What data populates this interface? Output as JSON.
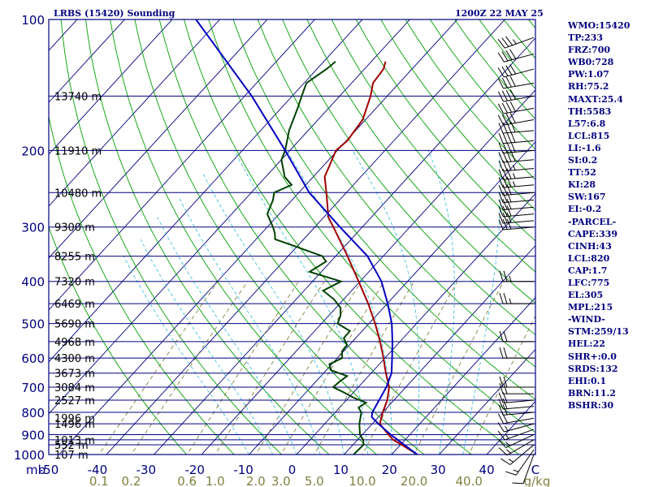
{
  "header": {
    "station": "LRBS (15420) Sounding",
    "time": "1200Z 22 MAY 25"
  },
  "indices": [
    "WMO:15420",
    "TP:233",
    "FRZ:700",
    "WB0:728",
    "PW:1.07",
    "RH:75.2",
    "MAXT:25.4",
    "TH:5583",
    "L57:6.8",
    "LCL:815",
    "LI:-1.6",
    "SI:0.2",
    "TT:52",
    "KI:28",
    "SW:167",
    "EI:-0.2",
    "-PARCEL-",
    "CAPE:339",
    "CINH:43",
    "LCL:820",
    "CAP:1.7",
    "LFC:775",
    "EL:305",
    "MPL:215",
    "-WIND-",
    "STM:259/13",
    "HEL:22",
    "SHR+:0.0",
    "SRDS:132",
    "EHI:0.1",
    "BRN:11.2",
    "BSHR:30"
  ],
  "colors": {
    "frame": "#000080",
    "isobar": "#000080",
    "isotherm": "#000080",
    "dry_adiabat": "#00a000",
    "moist_adiabat": "#40c0e0",
    "mixing_ratio": "#808040",
    "temperature": "#a00000",
    "dewpoint": "#004000",
    "parcel": "#0000c0",
    "wind_barb": "#000000",
    "axis_text": "#000080",
    "mixing_text": "#808040",
    "background": "#ffffff"
  },
  "chart_data": {
    "type": "skew-t log-p sounding",
    "title": "LRBS (15420) Sounding",
    "xlabel": "",
    "ylabel": "mb",
    "ylim": [
      1000,
      100
    ],
    "xlim": [
      -50,
      40
    ],
    "pressure_ticks": [
      100,
      200,
      300,
      400,
      500,
      600,
      700,
      800,
      900,
      1000
    ],
    "pressure_tick_labels": [
      "100",
      "200",
      "300",
      "400",
      "500",
      "600",
      "700",
      "800",
      "900",
      "1000"
    ],
    "x_unit_label": "mb",
    "temperature_ticks": [
      "-50",
      "-40",
      "-30",
      "-20",
      "-10",
      "0",
      "10",
      "20",
      "30",
      "40",
      "C"
    ],
    "mixing_ratio_ticks": [
      {
        "label": "0.1",
        "value": 0.1
      },
      {
        "label": "0.2",
        "value": 0.2
      },
      {
        "label": "0.6",
        "value": 0.6
      },
      {
        "label": "1.0",
        "value": 1.0
      },
      {
        "label": "2.0",
        "value": 2.0
      },
      {
        "label": "3.0",
        "value": 3.0
      },
      {
        "label": "5.0",
        "value": 5.0
      },
      {
        "label": "10.0",
        "value": 10.0
      },
      {
        "label": "20.0",
        "value": 20.0
      },
      {
        "label": "40.0",
        "value": 40.0
      }
    ],
    "mixing_ratio_unit": "g/kg",
    "height_labels": [
      {
        "p": 1000,
        "text": "107 m"
      },
      {
        "p": 950,
        "text": "552 m"
      },
      {
        "p": 925,
        "text": "1013 m"
      },
      {
        "p": 850,
        "text": "1496 m"
      },
      {
        "p": 825,
        "text": "1996 m"
      },
      {
        "p": 750,
        "text": "2527 m"
      },
      {
        "p": 700,
        "text": "3084 m"
      },
      {
        "p": 650,
        "text": "3673 m"
      },
      {
        "p": 600,
        "text": "4300 m"
      },
      {
        "p": 550,
        "text": "4968 m"
      },
      {
        "p": 500,
        "text": "5690 m"
      },
      {
        "p": 450,
        "text": "6469 m"
      },
      {
        "p": 400,
        "text": "7320 m"
      },
      {
        "p": 350,
        "text": "8255 m"
      },
      {
        "p": 300,
        "text": "9300 m"
      },
      {
        "p": 250,
        "text": "10480 m"
      },
      {
        "p": 200,
        "text": "11910 m"
      },
      {
        "p": 150,
        "text": "13740 m"
      }
    ],
    "series": [
      {
        "name": "temperature",
        "points": [
          {
            "p": 1000,
            "t": 25.4
          },
          {
            "p": 950,
            "t": 20.3
          },
          {
            "p": 925,
            "t": 17.5
          },
          {
            "p": 900,
            "t": 15.5
          },
          {
            "p": 850,
            "t": 11.6
          },
          {
            "p": 800,
            "t": 10.0
          },
          {
            "p": 750,
            "t": 8.6
          },
          {
            "p": 700,
            "t": 6.5
          },
          {
            "p": 650,
            "t": 3.1
          },
          {
            "p": 600,
            "t": -0.3
          },
          {
            "p": 550,
            "t": -4.2
          },
          {
            "p": 500,
            "t": -8.7
          },
          {
            "p": 450,
            "t": -14.0
          },
          {
            "p": 400,
            "t": -20.3
          },
          {
            "p": 350,
            "t": -27.5
          },
          {
            "p": 300,
            "t": -36.1
          },
          {
            "p": 285,
            "t": -39.0
          },
          {
            "p": 250,
            "t": -44.2
          },
          {
            "p": 230,
            "t": -47.6
          },
          {
            "p": 200,
            "t": -50.3
          },
          {
            "p": 190,
            "t": -49.8
          },
          {
            "p": 170,
            "t": -50.6
          },
          {
            "p": 150,
            "t": -53.5
          },
          {
            "p": 140,
            "t": -55.5
          },
          {
            "p": 130,
            "t": -56.0
          },
          {
            "p": 125,
            "t": -57.0
          }
        ]
      },
      {
        "name": "dewpoint",
        "points": [
          {
            "p": 1000,
            "t": 12.0
          },
          {
            "p": 950,
            "t": 12.2
          },
          {
            "p": 925,
            "t": 11.2
          },
          {
            "p": 900,
            "t": 9.5
          },
          {
            "p": 850,
            "t": 7.3
          },
          {
            "p": 800,
            "t": 5.5
          },
          {
            "p": 780,
            "t": 4.0
          },
          {
            "p": 760,
            "t": 4.6
          },
          {
            "p": 740,
            "t": 1.0
          },
          {
            "p": 720,
            "t": -2.0
          },
          {
            "p": 700,
            "t": -5.3
          },
          {
            "p": 680,
            "t": -5.0
          },
          {
            "p": 660,
            "t": -4.5
          },
          {
            "p": 640,
            "t": -9.0
          },
          {
            "p": 620,
            "t": -10.5
          },
          {
            "p": 600,
            "t": -9.0
          },
          {
            "p": 580,
            "t": -10.3
          },
          {
            "p": 560,
            "t": -10.5
          },
          {
            "p": 540,
            "t": -12.5
          },
          {
            "p": 520,
            "t": -12.6
          },
          {
            "p": 500,
            "t": -16.6
          },
          {
            "p": 480,
            "t": -17.5
          },
          {
            "p": 460,
            "t": -19.0
          },
          {
            "p": 440,
            "t": -22.0
          },
          {
            "p": 420,
            "t": -26.0
          },
          {
            "p": 400,
            "t": -24.0
          },
          {
            "p": 380,
            "t": -32.5
          },
          {
            "p": 360,
            "t": -31.0
          },
          {
            "p": 350,
            "t": -32.8
          },
          {
            "p": 340,
            "t": -37.0
          },
          {
            "p": 330,
            "t": -41.4
          },
          {
            "p": 320,
            "t": -46.0
          },
          {
            "p": 310,
            "t": -47.2
          },
          {
            "p": 300,
            "t": -48.8
          },
          {
            "p": 280,
            "t": -52.5
          },
          {
            "p": 260,
            "t": -54.0
          },
          {
            "p": 250,
            "t": -55.2
          },
          {
            "p": 240,
            "t": -53.0
          },
          {
            "p": 230,
            "t": -56.0
          },
          {
            "p": 210,
            "t": -60.0
          },
          {
            "p": 200,
            "t": -61.0
          },
          {
            "p": 180,
            "t": -64.0
          },
          {
            "p": 160,
            "t": -66.5
          },
          {
            "p": 150,
            "t": -68.0
          },
          {
            "p": 140,
            "t": -69.5
          },
          {
            "p": 130,
            "t": -68.0
          },
          {
            "p": 125,
            "t": -67.5
          }
        ]
      },
      {
        "name": "parcel",
        "points": [
          {
            "p": 1000,
            "t": 25.4
          },
          {
            "p": 950,
            "t": 20.8
          },
          {
            "p": 900,
            "t": 16.0
          },
          {
            "p": 850,
            "t": 11.3
          },
          {
            "p": 820,
            "t": 8.6
          },
          {
            "p": 800,
            "t": 7.8
          },
          {
            "p": 750,
            "t": 6.9
          },
          {
            "p": 700,
            "t": 5.9
          },
          {
            "p": 650,
            "t": 4.3
          },
          {
            "p": 600,
            "t": 1.5
          },
          {
            "p": 550,
            "t": -1.6
          },
          {
            "p": 500,
            "t": -5.2
          },
          {
            "p": 450,
            "t": -9.9
          },
          {
            "p": 400,
            "t": -15.5
          },
          {
            "p": 350,
            "t": -23.3
          },
          {
            "p": 300,
            "t": -34.7
          },
          {
            "p": 250,
            "t": -47.8
          },
          {
            "p": 200,
            "t": -61.0
          },
          {
            "p": 150,
            "t": -78.5
          },
          {
            "p": 100,
            "t": -105.0
          }
        ]
      }
    ],
    "wind_barbs": [
      {
        "p": 1000,
        "dir": 200,
        "kt": 10
      },
      {
        "p": 975,
        "dir": 215,
        "kt": 15
      },
      {
        "p": 950,
        "dir": 230,
        "kt": 15
      },
      {
        "p": 925,
        "dir": 240,
        "kt": 15
      },
      {
        "p": 900,
        "dir": 245,
        "kt": 15
      },
      {
        "p": 875,
        "dir": 250,
        "kt": 15
      },
      {
        "p": 850,
        "dir": 255,
        "kt": 15
      },
      {
        "p": 825,
        "dir": 260,
        "kt": 20
      },
      {
        "p": 800,
        "dir": 265,
        "kt": 20
      },
      {
        "p": 775,
        "dir": 265,
        "kt": 20
      },
      {
        "p": 750,
        "dir": 265,
        "kt": 20
      },
      {
        "p": 725,
        "dir": 270,
        "kt": 20
      },
      {
        "p": 700,
        "dir": 270,
        "kt": 20
      },
      {
        "p": 600,
        "dir": 270,
        "kt": 20
      },
      {
        "p": 550,
        "dir": 270,
        "kt": 20
      },
      {
        "p": 450,
        "dir": 270,
        "kt": 25
      },
      {
        "p": 400,
        "dir": 270,
        "kt": 25
      },
      {
        "p": 300,
        "dir": 265,
        "kt": 30
      },
      {
        "p": 290,
        "dir": 265,
        "kt": 30
      },
      {
        "p": 280,
        "dir": 265,
        "kt": 30
      },
      {
        "p": 270,
        "dir": 265,
        "kt": 30
      },
      {
        "p": 260,
        "dir": 265,
        "kt": 30
      },
      {
        "p": 250,
        "dir": 265,
        "kt": 30
      },
      {
        "p": 240,
        "dir": 265,
        "kt": 35
      },
      {
        "p": 230,
        "dir": 265,
        "kt": 35
      },
      {
        "p": 220,
        "dir": 265,
        "kt": 35
      },
      {
        "p": 210,
        "dir": 265,
        "kt": 40
      },
      {
        "p": 200,
        "dir": 265,
        "kt": 40
      },
      {
        "p": 190,
        "dir": 265,
        "kt": 40
      },
      {
        "p": 180,
        "dir": 265,
        "kt": 40
      },
      {
        "p": 170,
        "dir": 260,
        "kt": 40
      },
      {
        "p": 160,
        "dir": 260,
        "kt": 40
      },
      {
        "p": 150,
        "dir": 260,
        "kt": 40
      },
      {
        "p": 140,
        "dir": 260,
        "kt": 40
      },
      {
        "p": 130,
        "dir": 255,
        "kt": 40
      },
      {
        "p": 120,
        "dir": 255,
        "kt": 40
      },
      {
        "p": 110,
        "dir": 250,
        "kt": 35
      }
    ]
  }
}
